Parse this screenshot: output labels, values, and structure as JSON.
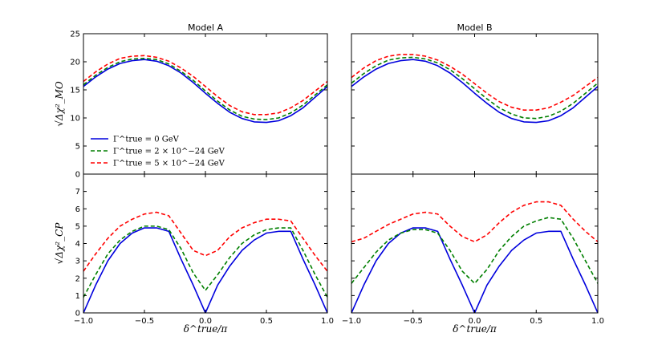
{
  "chart_data": {
    "type": "line",
    "figure_layout": "2x2 grid, shared x-axis per column, shared y-axis per row",
    "column_titles": [
      "Model A",
      "Model B"
    ],
    "xlabel": "δ^true/π",
    "xlim": [
      -1.0,
      1.0
    ],
    "xticks": [
      -1.0,
      -0.5,
      0.0,
      0.5,
      1.0
    ],
    "xtick_labels": [
      "−1.0",
      "−0.5",
      "0.0",
      "0.5",
      "1.0"
    ],
    "rows": [
      {
        "ylabel": "√Δχ²_MO",
        "ylim": [
          0,
          25
        ],
        "yticks": [
          0,
          5,
          10,
          15,
          20,
          25
        ],
        "ytick_labels": [
          "0",
          "5",
          "10",
          "15",
          "20",
          "25"
        ]
      },
      {
        "ylabel": "√Δχ²_CP",
        "ylim": [
          0,
          8
        ],
        "yticks": [
          0,
          1,
          2,
          3,
          4,
          5,
          6,
          7
        ],
        "ytick_labels": [
          "0",
          "1",
          "2",
          "3",
          "4",
          "5",
          "6",
          "7"
        ]
      }
    ],
    "legend": {
      "placement": "lower-left of top-left panel",
      "entries": [
        {
          "label": "Γ^true = 0 GeV",
          "color": "#0000dd",
          "style": "solid"
        },
        {
          "label": "Γ^true = 2 × 10^−24 GeV",
          "color": "#007f00",
          "style": "dashed"
        },
        {
          "label": "Γ^true = 5 × 10^−24 GeV",
          "color": "#ff0000",
          "style": "dashed"
        }
      ]
    },
    "panels": [
      {
        "name": "model-a-mo",
        "row": 0,
        "col": 0,
        "series": [
          {
            "name": "Γ^true = 0 GeV",
            "color": "#0000dd",
            "style": "solid",
            "x": [
              -1.0,
              -0.9,
              -0.8,
              -0.7,
              -0.6,
              -0.5,
              -0.4,
              -0.3,
              -0.2,
              -0.1,
              0.0,
              0.1,
              0.2,
              0.3,
              0.4,
              0.5,
              0.6,
              0.7,
              0.8,
              0.9,
              1.0
            ],
            "y": [
              15.6,
              17.3,
              18.7,
              19.7,
              20.2,
              20.4,
              20.1,
              19.3,
              18.0,
              16.3,
              14.4,
              12.6,
              11.0,
              9.9,
              9.3,
              9.2,
              9.5,
              10.4,
              11.8,
              13.7,
              15.6
            ]
          },
          {
            "name": "Γ^true = 2 × 10^−24 GeV",
            "color": "#007f00",
            "style": "dashed",
            "x": [
              -1.0,
              -0.9,
              -0.8,
              -0.7,
              -0.6,
              -0.5,
              -0.4,
              -0.3,
              -0.2,
              -0.1,
              0.0,
              0.1,
              0.2,
              0.3,
              0.4,
              0.5,
              0.6,
              0.7,
              0.8,
              0.9,
              1.0
            ],
            "y": [
              15.9,
              17.6,
              19.0,
              20.0,
              20.5,
              20.6,
              20.4,
              19.6,
              18.3,
              16.7,
              14.8,
              13.0,
              11.4,
              10.3,
              9.8,
              9.7,
              10.0,
              10.9,
              12.3,
              14.1,
              15.9
            ]
          },
          {
            "name": "Γ^true = 5 × 10^−24 GeV",
            "color": "#ff0000",
            "style": "dashed",
            "x": [
              -1.0,
              -0.9,
              -0.8,
              -0.7,
              -0.6,
              -0.5,
              -0.4,
              -0.3,
              -0.2,
              -0.1,
              0.0,
              0.1,
              0.2,
              0.3,
              0.4,
              0.5,
              0.6,
              0.7,
              0.8,
              0.9,
              1.0
            ],
            "y": [
              16.5,
              18.2,
              19.6,
              20.6,
              21.0,
              21.1,
              20.8,
              20.1,
              18.9,
              17.4,
              15.6,
              13.8,
              12.2,
              11.1,
              10.6,
              10.6,
              10.9,
              11.8,
              13.1,
              14.8,
              16.5
            ]
          }
        ]
      },
      {
        "name": "model-b-mo",
        "row": 0,
        "col": 1,
        "series": [
          {
            "name": "Γ^true = 0 GeV",
            "color": "#0000dd",
            "style": "solid",
            "x": [
              -1.0,
              -0.9,
              -0.8,
              -0.7,
              -0.6,
              -0.5,
              -0.4,
              -0.3,
              -0.2,
              -0.1,
              0.0,
              0.1,
              0.2,
              0.3,
              0.4,
              0.5,
              0.6,
              0.7,
              0.8,
              0.9,
              1.0
            ],
            "y": [
              15.6,
              17.3,
              18.7,
              19.7,
              20.2,
              20.4,
              20.1,
              19.3,
              18.0,
              16.3,
              14.4,
              12.6,
              11.0,
              9.9,
              9.3,
              9.2,
              9.5,
              10.4,
              11.8,
              13.7,
              15.6
            ]
          },
          {
            "name": "Γ^true = 2 × 10^−24 GeV",
            "color": "#007f00",
            "style": "dashed",
            "x": [
              -1.0,
              -0.9,
              -0.8,
              -0.7,
              -0.6,
              -0.5,
              -0.4,
              -0.3,
              -0.2,
              -0.1,
              0.0,
              0.1,
              0.2,
              0.3,
              0.4,
              0.5,
              0.6,
              0.7,
              0.8,
              0.9,
              1.0
            ],
            "y": [
              16.2,
              17.9,
              19.3,
              20.3,
              20.7,
              20.8,
              20.5,
              19.8,
              18.6,
              17.0,
              15.2,
              13.4,
              11.8,
              10.7,
              10.0,
              9.9,
              10.3,
              11.2,
              12.6,
              14.4,
              16.2
            ]
          },
          {
            "name": "Γ^true = 5 × 10^−24 GeV",
            "color": "#ff0000",
            "style": "dashed",
            "x": [
              -1.0,
              -0.9,
              -0.8,
              -0.7,
              -0.6,
              -0.5,
              -0.4,
              -0.3,
              -0.2,
              -0.1,
              0.0,
              0.1,
              0.2,
              0.3,
              0.4,
              0.5,
              0.6,
              0.7,
              0.8,
              0.9,
              1.0
            ],
            "y": [
              17.2,
              18.9,
              20.2,
              21.0,
              21.3,
              21.3,
              21.0,
              20.3,
              19.2,
              17.8,
              16.1,
              14.4,
              12.9,
              11.9,
              11.4,
              11.4,
              11.8,
              12.8,
              14.0,
              15.6,
              17.2
            ]
          }
        ]
      },
      {
        "name": "model-a-cp",
        "row": 1,
        "col": 0,
        "series": [
          {
            "name": "Γ^true = 0 GeV",
            "color": "#0000dd",
            "style": "solid",
            "x": [
              -1.0,
              -0.9,
              -0.8,
              -0.7,
              -0.6,
              -0.5,
              -0.4,
              -0.3,
              -0.2,
              -0.1,
              0.0,
              0.1,
              0.2,
              0.3,
              0.4,
              0.5,
              0.6,
              0.7,
              0.8,
              0.9,
              1.0
            ],
            "y": [
              0.0,
              1.6,
              3.0,
              4.0,
              4.6,
              4.9,
              4.9,
              4.7,
              3.1,
              1.6,
              0.0,
              1.6,
              2.7,
              3.6,
              4.2,
              4.6,
              4.7,
              4.7,
              3.1,
              1.6,
              0.0
            ]
          },
          {
            "name": "Γ^true = 2 × 10^−24 GeV",
            "color": "#007f00",
            "style": "dashed",
            "x": [
              -1.0,
              -0.9,
              -0.8,
              -0.7,
              -0.6,
              -0.5,
              -0.4,
              -0.3,
              -0.2,
              -0.1,
              0.0,
              0.1,
              0.2,
              0.3,
              0.4,
              0.5,
              0.6,
              0.7,
              0.8,
              0.9,
              1.0
            ],
            "y": [
              0.9,
              2.2,
              3.4,
              4.2,
              4.7,
              5.0,
              5.0,
              4.8,
              3.7,
              2.3,
              1.3,
              2.2,
              3.2,
              4.0,
              4.5,
              4.8,
              4.9,
              4.9,
              3.6,
              2.2,
              0.9
            ]
          },
          {
            "name": "Γ^true = 5 × 10^−24 GeV",
            "color": "#ff0000",
            "style": "dashed",
            "x": [
              -1.0,
              -0.9,
              -0.8,
              -0.7,
              -0.6,
              -0.5,
              -0.4,
              -0.3,
              -0.2,
              -0.1,
              0.0,
              0.1,
              0.2,
              0.3,
              0.4,
              0.5,
              0.6,
              0.7,
              0.8,
              0.9,
              1.0
            ],
            "y": [
              2.4,
              3.4,
              4.3,
              5.0,
              5.4,
              5.7,
              5.8,
              5.6,
              4.6,
              3.6,
              3.3,
              3.6,
              4.4,
              4.9,
              5.2,
              5.4,
              5.4,
              5.3,
              4.3,
              3.3,
              2.4
            ]
          }
        ]
      },
      {
        "name": "model-b-cp",
        "row": 1,
        "col": 1,
        "series": [
          {
            "name": "Γ^true = 0 GeV",
            "color": "#0000dd",
            "style": "solid",
            "x": [
              -1.0,
              -0.9,
              -0.8,
              -0.7,
              -0.6,
              -0.5,
              -0.4,
              -0.3,
              -0.2,
              -0.1,
              0.0,
              0.1,
              0.2,
              0.3,
              0.4,
              0.5,
              0.6,
              0.7,
              0.8,
              0.9,
              1.0
            ],
            "y": [
              0.0,
              1.6,
              3.0,
              4.0,
              4.6,
              4.9,
              4.9,
              4.7,
              3.1,
              1.6,
              0.0,
              1.6,
              2.7,
              3.6,
              4.2,
              4.6,
              4.7,
              4.7,
              3.1,
              1.6,
              0.0
            ]
          },
          {
            "name": "Γ^true = 2 × 10^−24 GeV",
            "color": "#007f00",
            "style": "dashed",
            "x": [
              -1.0,
              -0.9,
              -0.8,
              -0.7,
              -0.6,
              -0.5,
              -0.4,
              -0.3,
              -0.2,
              -0.1,
              0.0,
              0.1,
              0.2,
              0.3,
              0.4,
              0.5,
              0.6,
              0.7,
              0.8,
              0.9,
              1.0
            ],
            "y": [
              1.7,
              2.6,
              3.5,
              4.2,
              4.6,
              4.8,
              4.8,
              4.6,
              3.6,
              2.4,
              1.7,
              2.5,
              3.6,
              4.4,
              5.0,
              5.3,
              5.5,
              5.4,
              4.3,
              3.0,
              1.7
            ]
          },
          {
            "name": "Γ^true = 5 × 10^−24 GeV",
            "color": "#ff0000",
            "style": "dashed",
            "x": [
              -1.0,
              -0.9,
              -0.8,
              -0.7,
              -0.6,
              -0.5,
              -0.4,
              -0.3,
              -0.2,
              -0.1,
              0.0,
              0.1,
              0.2,
              0.3,
              0.4,
              0.5,
              0.6,
              0.7,
              0.8,
              0.9,
              1.0
            ],
            "y": [
              4.1,
              4.3,
              4.7,
              5.1,
              5.4,
              5.7,
              5.8,
              5.7,
              5.0,
              4.4,
              4.1,
              4.5,
              5.2,
              5.8,
              6.2,
              6.4,
              6.4,
              6.2,
              5.4,
              4.7,
              4.1
            ]
          }
        ]
      }
    ]
  }
}
